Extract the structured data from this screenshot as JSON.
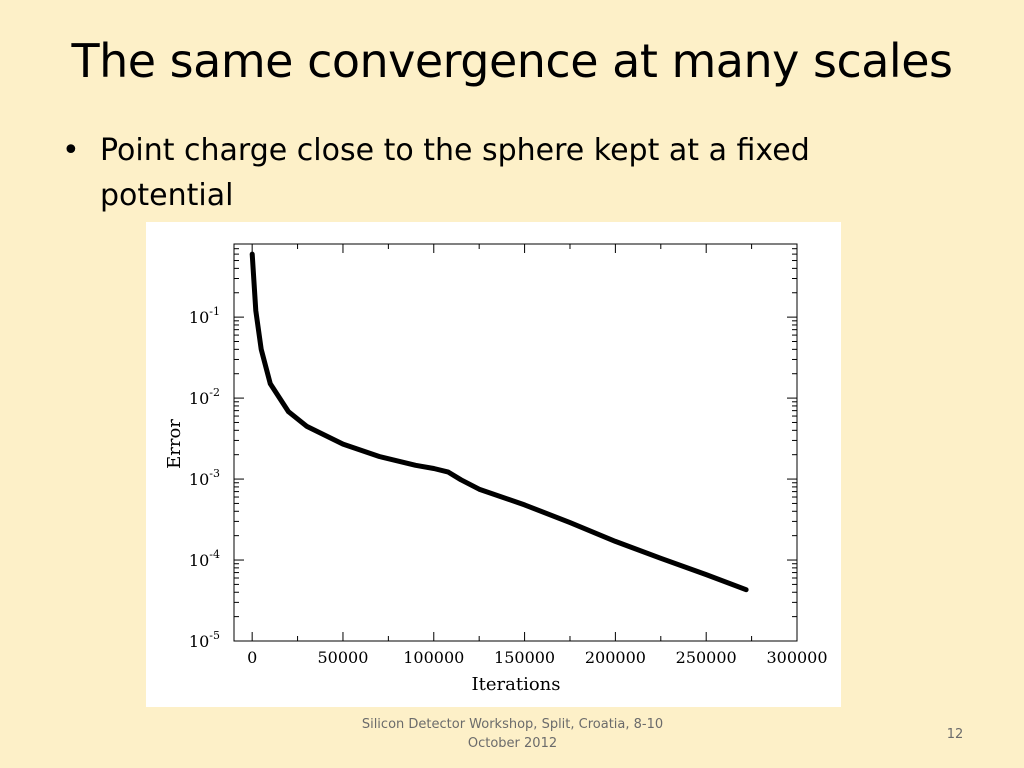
{
  "slide": {
    "title": "The same convergence at many scales",
    "bullet": "Point charge close to the sphere kept at a fixed potential",
    "footer": "Silicon Detector Workshop, Split, Croatia, 8-10 October 2012",
    "page_number": "12"
  },
  "chart_data": {
    "type": "line",
    "xlabel": "Iterations",
    "ylabel": "Error",
    "xlim": [
      -10000,
      300000
    ],
    "ylim": [
      1e-05,
      0.8
    ],
    "yscale": "log",
    "grid": false,
    "legend": "none",
    "line_color": "#000000",
    "x_ticks": [
      "0",
      "50000",
      "100000",
      "150000",
      "200000",
      "250000",
      "300000"
    ],
    "y_ticks": [
      {
        "base": "10",
        "exp": "-1"
      },
      {
        "base": "10",
        "exp": "-2"
      },
      {
        "base": "10",
        "exp": "-3"
      },
      {
        "base": "10",
        "exp": "-4"
      },
      {
        "base": "10",
        "exp": "-5"
      }
    ],
    "series": [
      {
        "x": [
          0,
          2000,
          5000,
          10000,
          20000,
          30000,
          50000,
          70000,
          90000,
          100000,
          108000,
          115000,
          125000,
          150000,
          175000,
          200000,
          225000,
          250000,
          272000
        ],
        "y": [
          0.6,
          0.12,
          0.04,
          0.015,
          0.0068,
          0.0045,
          0.0027,
          0.0019,
          0.00148,
          0.00135,
          0.00122,
          0.00098,
          0.00075,
          0.00048,
          0.00029,
          0.00017,
          0.000105,
          6.6e-05,
          4.3e-05
        ]
      }
    ]
  }
}
